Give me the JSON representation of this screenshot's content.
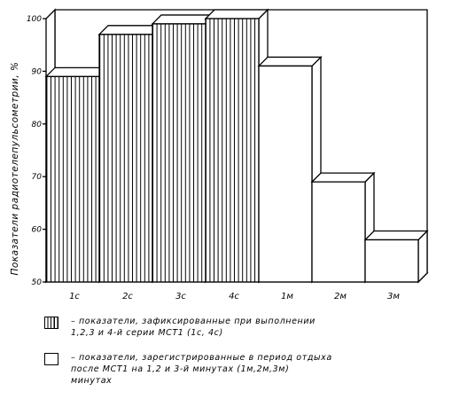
{
  "chart_data": {
    "type": "bar",
    "categories": [
      "1c",
      "2c",
      "3c",
      "4c",
      "1м",
      "2м",
      "3м"
    ],
    "series": [
      {
        "name": "показатели, зафиксированные при выполнении 1,2,3 и 4-й серии МСТ1 (1с, 4с)",
        "pattern": "hatched",
        "values": [
          89,
          97,
          99,
          100,
          null,
          null,
          null
        ]
      },
      {
        "name": "показатели, зарегистрированные в период отдыха после МСТ1 на 1,2 и 3-й минутах (1м,2м,3м)",
        "pattern": "empty",
        "values": [
          null,
          null,
          null,
          null,
          91,
          69,
          58
        ]
      }
    ],
    "ylabel": "Показатели радиотелепульсометрии, %",
    "ylim": [
      50,
      100
    ],
    "yticks": [
      "50",
      "60",
      "70",
      "80",
      "90",
      "100"
    ],
    "grid": false,
    "style": "3d"
  },
  "legend": {
    "items": [
      {
        "lines": [
          "– показатели, зафиксированные при выполнении",
          "1,2,3 и 4-й серии МСТ1 (1с, 4с)"
        ]
      },
      {
        "lines": [
          "– показатели, зарегистрированные в период отдыха",
          "после МСТ1 на 1,2 и 3-й минутах (1м,2м,3м)",
          "минутах"
        ]
      }
    ]
  }
}
